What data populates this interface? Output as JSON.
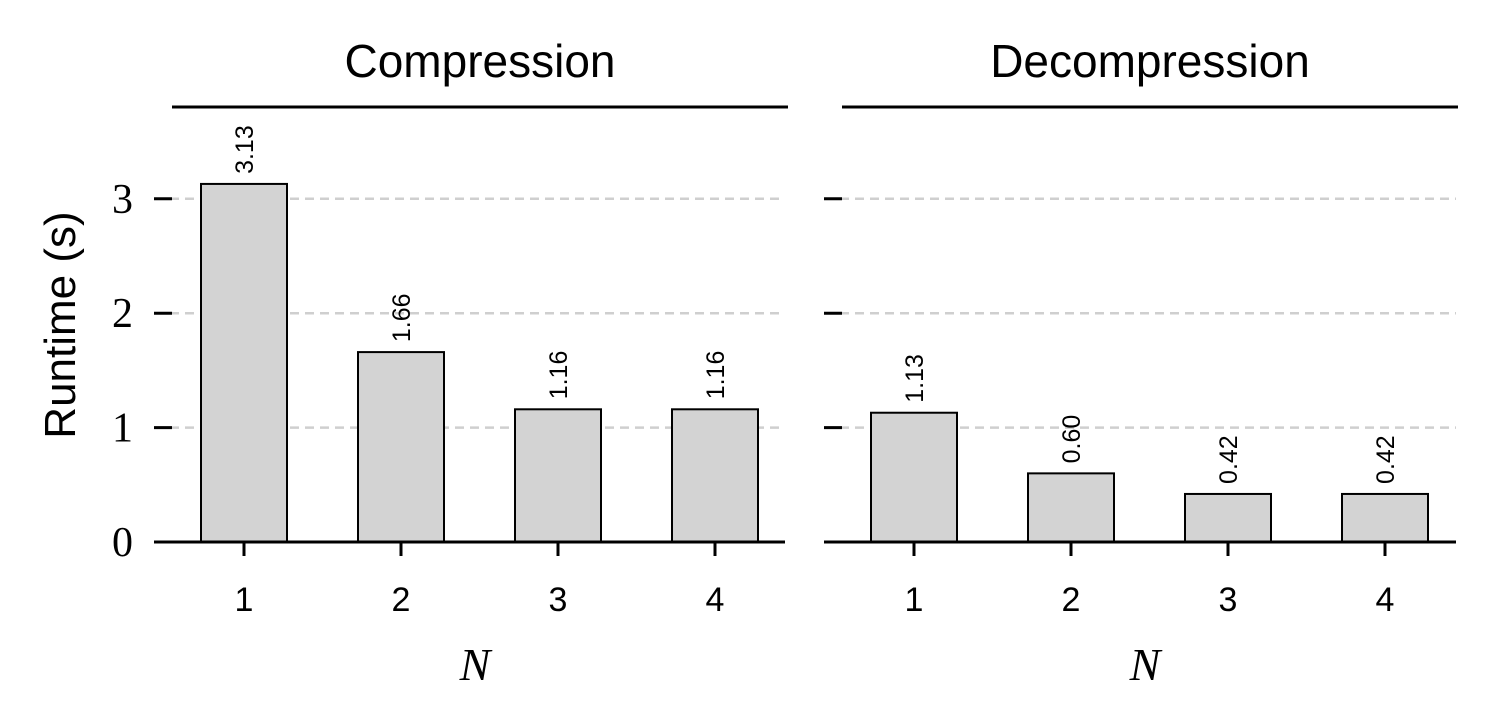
{
  "chart_data": [
    {
      "type": "bar",
      "title": "Compression",
      "xlabel": "N",
      "ylabel": "Runtime (s)",
      "categories": [
        "1",
        "2",
        "3",
        "4"
      ],
      "values": [
        3.13,
        1.66,
        1.16,
        1.16
      ],
      "data_labels": [
        "3.13",
        "1.66",
        "1.16",
        "1.16"
      ],
      "ylim": [
        0,
        3.8
      ],
      "yticks": [
        0,
        1,
        2,
        3
      ],
      "ytick_labels": [
        "0",
        "1",
        "2",
        "3"
      ],
      "grid": "y-dashed",
      "bar_color": "#d3d3d3",
      "edge_color": "#000000"
    },
    {
      "type": "bar",
      "title": "Decompression",
      "xlabel": "N",
      "ylabel": "",
      "categories": [
        "1",
        "2",
        "3",
        "4"
      ],
      "values": [
        1.13,
        0.6,
        0.42,
        0.42
      ],
      "data_labels": [
        "1.13",
        "0.60",
        "0.42",
        "0.42"
      ],
      "ylim": [
        0,
        3.8
      ],
      "yticks": [
        0,
        1,
        2,
        3
      ],
      "ytick_labels": [],
      "grid": "y-dashed",
      "bar_color": "#d3d3d3",
      "edge_color": "#000000"
    }
  ],
  "colors": {
    "bar_fill": "#d3d3d3",
    "bar_edge": "#000000",
    "grid": "#cfcfcf",
    "axis": "#000000"
  }
}
